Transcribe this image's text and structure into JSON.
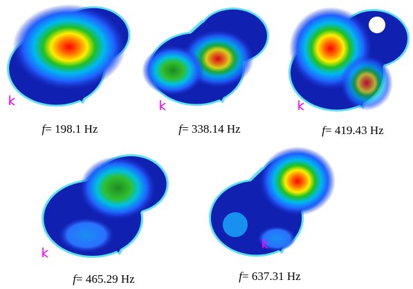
{
  "panels": [
    {
      "symbol": "f",
      "text": "= 198.1 Hz"
    },
    {
      "symbol": "f",
      "text": "= 338.14 Hz"
    },
    {
      "symbol": "f",
      "text": "= 419.43 Hz"
    },
    {
      "symbol": "f",
      "text": "= 465.29 Hz"
    },
    {
      "symbol": "f",
      "text": "= 637.31 Hz"
    }
  ]
}
